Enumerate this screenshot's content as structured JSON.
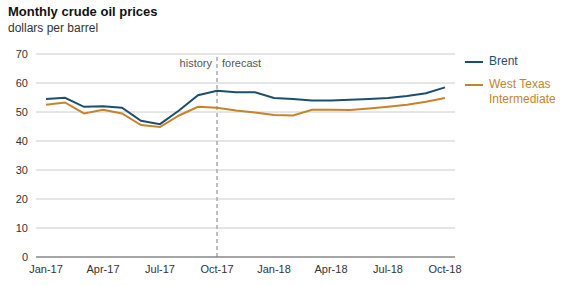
{
  "chart_data": {
    "type": "line",
    "title": "Monthly crude oil prices",
    "subtitle": "dollars per barrel",
    "categories": [
      "Jan-17",
      null,
      null,
      "Apr-17",
      null,
      null,
      "Jul-17",
      null,
      null,
      "Oct-17",
      null,
      null,
      "Jan-18",
      null,
      null,
      "Apr-18",
      null,
      null,
      "Jul-18",
      null,
      null,
      "Oct-18"
    ],
    "series": [
      {
        "name": "Brent",
        "color": "#1c4f6e",
        "values": [
          54.5,
          54.9,
          51.8,
          52.0,
          51.5,
          47.0,
          45.8,
          50.5,
          55.8,
          57.3,
          56.8,
          56.8,
          54.8,
          54.5,
          54.0,
          54.0,
          54.2,
          54.5,
          54.8,
          55.5,
          56.5,
          58.5
        ]
      },
      {
        "name": "West Texas\nIntermediate",
        "color": "#c8832a",
        "values": [
          52.5,
          53.3,
          49.5,
          50.8,
          49.5,
          45.5,
          44.8,
          48.8,
          51.8,
          51.5,
          50.5,
          49.8,
          49.0,
          48.8,
          50.8,
          50.8,
          50.7,
          51.2,
          51.8,
          52.5,
          53.5,
          54.8
        ]
      }
    ],
    "ylim": [
      0,
      70
    ],
    "yticks": [
      0,
      10,
      20,
      30,
      40,
      50,
      60,
      70
    ],
    "grid": true,
    "legend": "right",
    "annotations": [
      {
        "text": "history",
        "x": "Oct-17",
        "side": "left"
      },
      {
        "text": "forecast",
        "x": "Oct-17",
        "side": "right"
      }
    ]
  }
}
